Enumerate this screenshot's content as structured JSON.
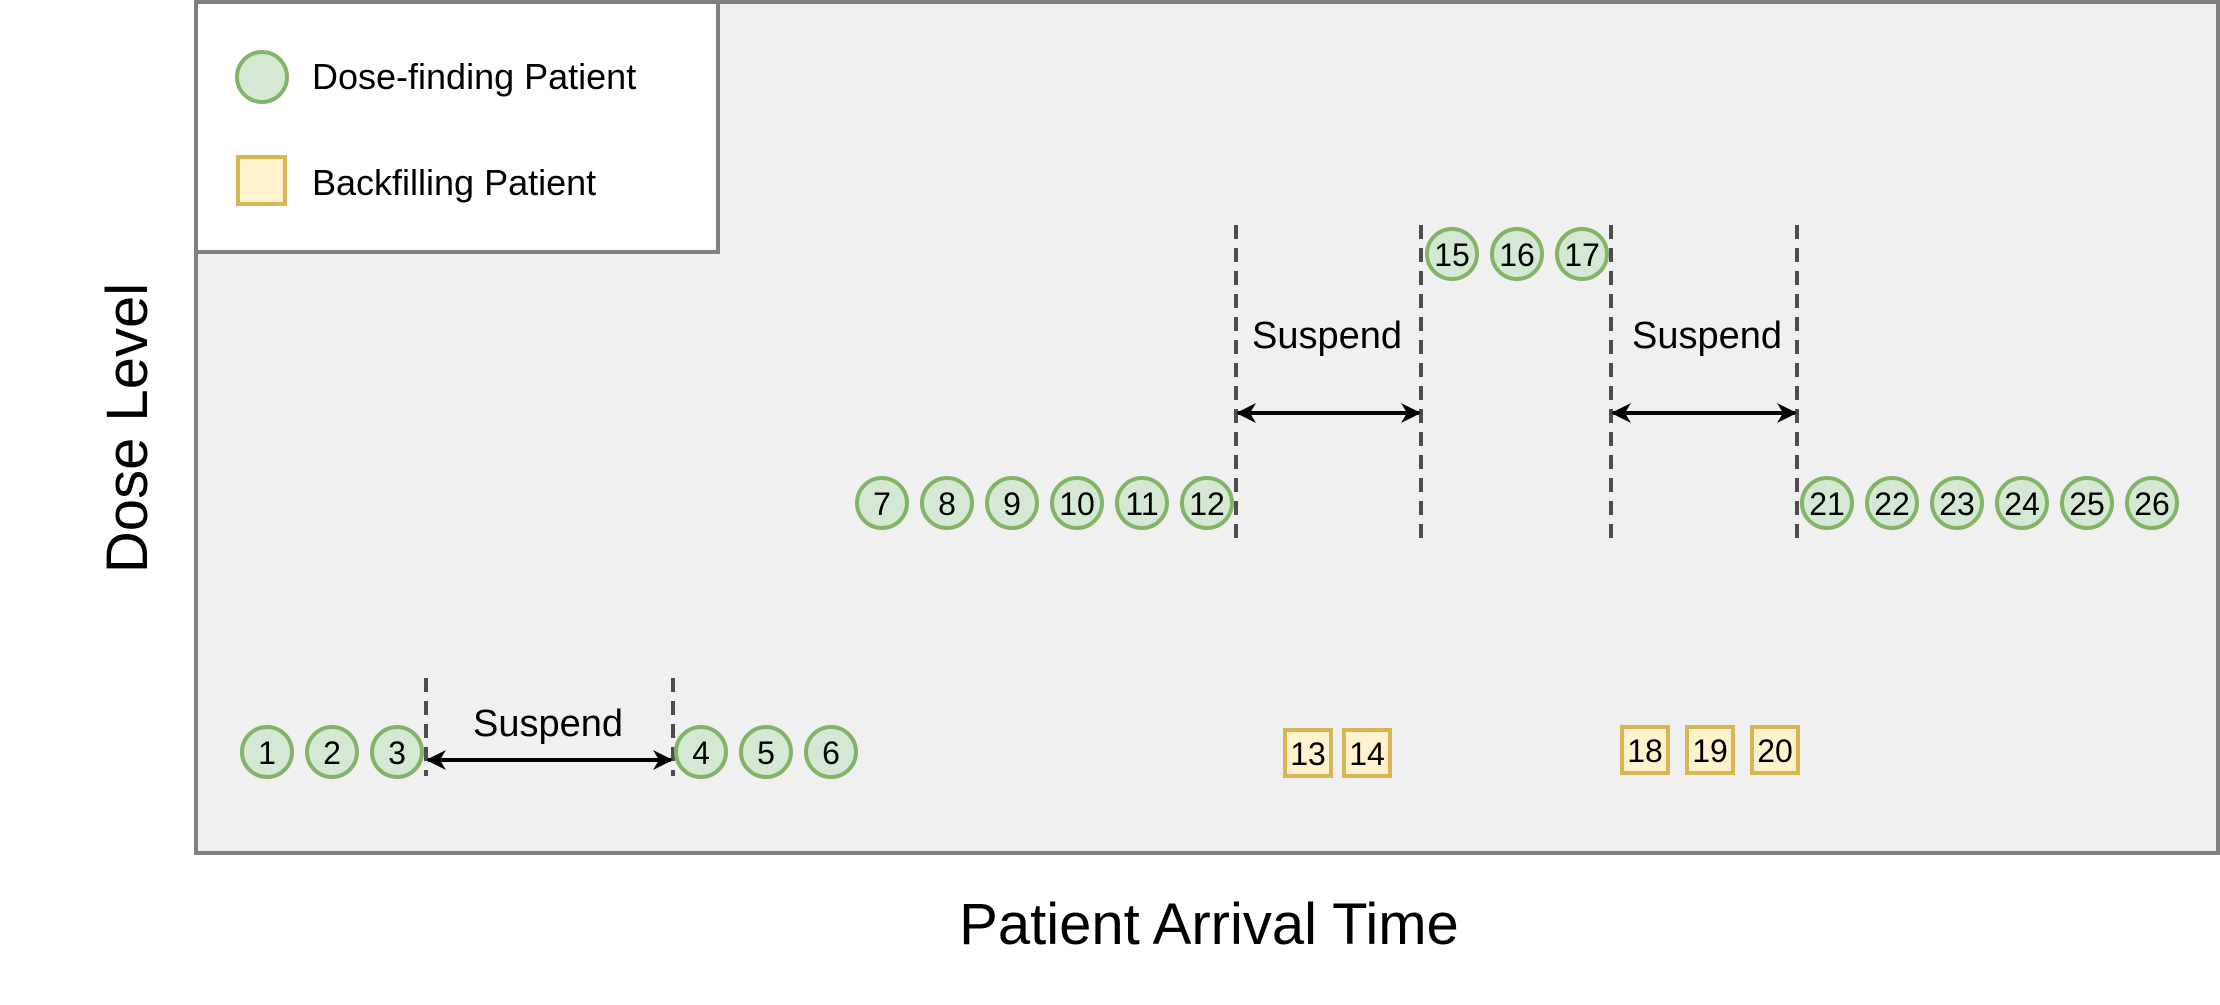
{
  "axes": {
    "x_label": "Patient Arrival Time",
    "y_label": "Dose Level"
  },
  "legend": [
    {
      "shape": "circle",
      "label": "Dose-finding Patient"
    },
    {
      "shape": "square",
      "label": "Backfilling Patient"
    }
  ],
  "colors": {
    "circle_fill": "#d5e8d4",
    "circle_stroke": "#82b366",
    "square_fill": "#fff2cc",
    "square_stroke": "#d6b656",
    "panel_fill": "#f0f0f0",
    "panel_stroke": "#808080",
    "suspend_line": "#4d4d4d",
    "arrow": "#000000"
  },
  "patients": [
    {
      "id": "1",
      "type": "dose-finding",
      "level": "low"
    },
    {
      "id": "2",
      "type": "dose-finding",
      "level": "low"
    },
    {
      "id": "3",
      "type": "dose-finding",
      "level": "low"
    },
    {
      "id": "4",
      "type": "dose-finding",
      "level": "low"
    },
    {
      "id": "5",
      "type": "dose-finding",
      "level": "low"
    },
    {
      "id": "6",
      "type": "dose-finding",
      "level": "low"
    },
    {
      "id": "7",
      "type": "dose-finding",
      "level": "middle"
    },
    {
      "id": "8",
      "type": "dose-finding",
      "level": "middle"
    },
    {
      "id": "9",
      "type": "dose-finding",
      "level": "middle"
    },
    {
      "id": "10",
      "type": "dose-finding",
      "level": "middle"
    },
    {
      "id": "11",
      "type": "dose-finding",
      "level": "middle"
    },
    {
      "id": "12",
      "type": "dose-finding",
      "level": "middle"
    },
    {
      "id": "13",
      "type": "backfilling",
      "level": "low"
    },
    {
      "id": "14",
      "type": "backfilling",
      "level": "low"
    },
    {
      "id": "15",
      "type": "dose-finding",
      "level": "high"
    },
    {
      "id": "16",
      "type": "dose-finding",
      "level": "high"
    },
    {
      "id": "17",
      "type": "dose-finding",
      "level": "high"
    },
    {
      "id": "18",
      "type": "backfilling",
      "level": "low"
    },
    {
      "id": "19",
      "type": "backfilling",
      "level": "low"
    },
    {
      "id": "20",
      "type": "backfilling",
      "level": "low"
    },
    {
      "id": "21",
      "type": "dose-finding",
      "level": "middle"
    },
    {
      "id": "22",
      "type": "dose-finding",
      "level": "middle"
    },
    {
      "id": "23",
      "type": "dose-finding",
      "level": "middle"
    },
    {
      "id": "24",
      "type": "dose-finding",
      "level": "middle"
    },
    {
      "id": "25",
      "type": "dose-finding",
      "level": "middle"
    },
    {
      "id": "26",
      "type": "dose-finding",
      "level": "middle"
    }
  ],
  "suspensions": [
    {
      "label": "Suspend"
    },
    {
      "label": "Suspend"
    },
    {
      "label": "Suspend"
    }
  ]
}
